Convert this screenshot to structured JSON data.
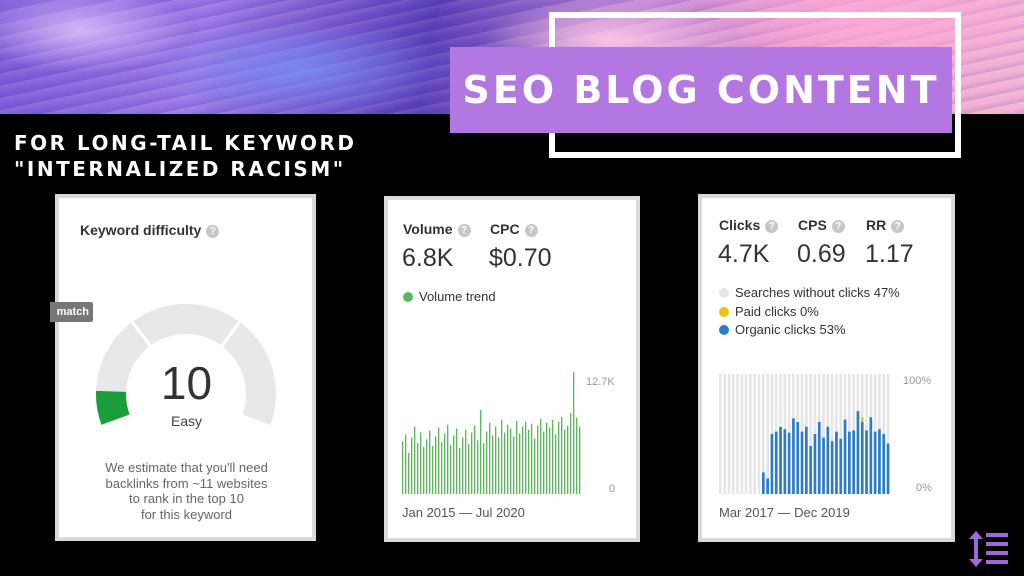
{
  "title": "SEO BLOG CONTENT",
  "subtitle": [
    "FOR LONG-TAIL KEYWORD",
    "\"INTERNALIZED RACISM\""
  ],
  "difficulty_card": {
    "label": "Keyword difficulty",
    "tab_label": "match",
    "value": "10",
    "value_fraction": 0.1,
    "rating": "Easy",
    "note": [
      "We estimate that you'll need",
      "backlinks from ~11 websites",
      "to rank in the top 10",
      "for this keyword"
    ],
    "gauge_color": "#1a9e3c"
  },
  "volume_card": {
    "volume_label": "Volume",
    "volume_value": "6.8K",
    "cpc_label": "CPC",
    "cpc_value": "$0.70",
    "legend": "Volume trend",
    "legend_color": "#5cb85c",
    "axis_top": "12.7K",
    "axis_bottom": "0",
    "date_range": "Jan 2015 — Jul 2020",
    "chart_data": {
      "type": "bar",
      "ylim": [
        0,
        12700
      ],
      "values": [
        5400,
        6100,
        4200,
        5800,
        6900,
        5200,
        6300,
        4800,
        5600,
        6500,
        4900,
        5900,
        6800,
        5300,
        6200,
        7100,
        5000,
        6000,
        6700,
        4700,
        5800,
        6600,
        5100,
        6300,
        7000,
        5500,
        8600,
        5200,
        6400,
        7300,
        6000,
        6900,
        5800,
        7600,
        6300,
        7100,
        6700,
        5900,
        7500,
        6200,
        6900,
        7400,
        6600,
        7200,
        5700,
        7000,
        7700,
        6400,
        7300,
        6800,
        7600,
        6100,
        7400,
        7900,
        6600,
        7000,
        8300,
        12500,
        7800,
        6900
      ]
    }
  },
  "clicks_card": {
    "clicks_label": "Clicks",
    "clicks_value": "4.7K",
    "cps_label": "CPS",
    "cps_value": "0.69",
    "rr_label": "RR",
    "rr_value": "1.17",
    "legend": [
      {
        "label": "Searches without clicks 47%",
        "color": "#e6e6e6"
      },
      {
        "label": "Paid clicks 0%",
        "color": "#f2c200"
      },
      {
        "label": "Organic clicks 53%",
        "color": "#2b7cc4"
      }
    ],
    "axis_top": "100%",
    "axis_bottom": "0%",
    "date_range": "Mar 2017 — Dec 2019",
    "chart_data": {
      "type": "bar",
      "ylim": [
        0,
        100
      ],
      "organic": [
        0,
        0,
        0,
        0,
        0,
        0,
        0,
        0,
        0,
        0,
        18,
        13,
        50,
        52,
        56,
        54,
        51,
        63,
        60,
        52,
        56,
        40,
        50,
        60,
        47,
        56,
        44,
        52,
        46,
        62,
        52,
        53,
        69,
        60,
        53,
        64,
        52,
        54,
        50,
        42
      ],
      "paid": [
        0,
        0,
        0,
        0,
        0,
        0,
        0,
        0,
        0,
        0,
        0,
        0,
        0,
        0,
        0,
        0,
        0,
        0,
        0,
        0,
        0,
        0,
        0,
        0,
        0,
        0,
        0,
        0,
        0,
        0,
        0,
        0,
        0,
        4,
        0,
        0,
        0,
        0,
        0,
        0
      ]
    }
  },
  "logo_icon": "sort-arrows-list-icon",
  "accent_color": "#b277e0"
}
